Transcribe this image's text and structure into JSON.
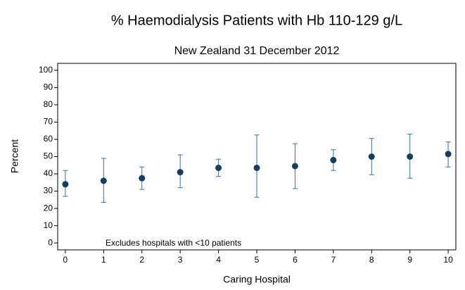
{
  "chart_data": {
    "type": "errorbar",
    "title": "% Haemodialysis Patients with Hb 110-129 g/L",
    "subtitle": "New Zealand 31 December 2012",
    "x_label": "Caring Hospital",
    "y_label": "Percent",
    "annotation": "Excludes hospitals with <10 patients",
    "x": [
      0,
      1,
      2,
      3,
      4,
      5,
      6,
      7,
      8,
      9,
      10
    ],
    "values": [
      34,
      36,
      37.5,
      41,
      43.5,
      43.5,
      44.5,
      48,
      50,
      50,
      51.5
    ],
    "lower": [
      27,
      23.5,
      31,
      32,
      38.5,
      26.5,
      31.5,
      42,
      39.5,
      37.5,
      44
    ],
    "upper": [
      42,
      49,
      44,
      51,
      48.5,
      62.5,
      57.5,
      54,
      60.5,
      63,
      58.5
    ],
    "color": "#1a3d5c",
    "bar_color": "#3a6f8f",
    "xlim": [
      -0.2,
      10.2
    ],
    "ylim": [
      -4,
      104
    ],
    "xticks": [
      0,
      1,
      2,
      3,
      4,
      5,
      6,
      7,
      8,
      9,
      10
    ],
    "yticks": [
      0,
      10,
      20,
      30,
      40,
      50,
      60,
      70,
      80,
      90,
      100
    ],
    "grid": false
  }
}
